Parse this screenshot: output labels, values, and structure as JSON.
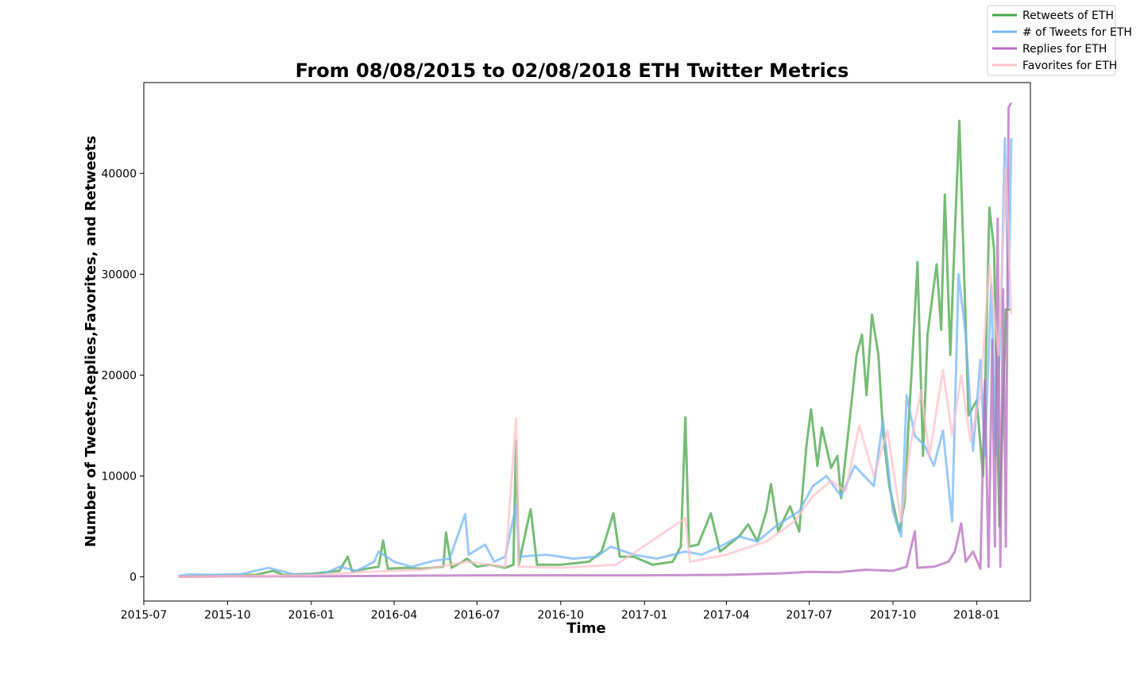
{
  "chart_data": {
    "type": "line",
    "title": "From 08/08/2015 to 02/08/2018 ETH Twitter Metrics",
    "xlabel": "Time",
    "ylabel": "Number of Tweets,Replies,Favorites, and Retweets",
    "x_ticks": [
      "2015-07",
      "2015-10",
      "2016-01",
      "2016-04",
      "2016-07",
      "2016-10",
      "2017-01",
      "2017-04",
      "2017-07",
      "2017-10",
      "2018-01"
    ],
    "y_ticks": [
      "0",
      "10000",
      "20000",
      "30000",
      "40000"
    ],
    "xlim": [
      "2015-07-01",
      "2018-03-01"
    ],
    "ylim": [
      -2400,
      49000
    ],
    "legend_position": "top-right",
    "grid": false,
    "series": [
      {
        "name": "Retweets of ETH",
        "color": "#4aa64a",
        "points": [
          [
            "2015-08-08",
            0
          ],
          [
            "2015-09-01",
            100
          ],
          [
            "2015-10-01",
            150
          ],
          [
            "2015-11-01",
            200
          ],
          [
            "2015-11-20",
            600
          ],
          [
            "2015-12-01",
            200
          ],
          [
            "2016-01-01",
            300
          ],
          [
            "2016-02-01",
            600
          ],
          [
            "2016-02-10",
            2000
          ],
          [
            "2016-02-15",
            500
          ],
          [
            "2016-03-01",
            800
          ],
          [
            "2016-03-15",
            1000
          ],
          [
            "2016-03-20",
            3600
          ],
          [
            "2016-03-25",
            800
          ],
          [
            "2016-04-15",
            900
          ],
          [
            "2016-05-01",
            800
          ],
          [
            "2016-05-25",
            1000
          ],
          [
            "2016-05-28",
            4400
          ],
          [
            "2016-06-03",
            900
          ],
          [
            "2016-06-15",
            1500
          ],
          [
            "2016-06-20",
            1800
          ],
          [
            "2016-07-01",
            1000
          ],
          [
            "2016-07-15",
            1200
          ],
          [
            "2016-08-01",
            900
          ],
          [
            "2016-08-10",
            1200
          ],
          [
            "2016-08-13",
            13500
          ],
          [
            "2016-08-16",
            1200
          ],
          [
            "2016-08-25",
            5100
          ],
          [
            "2016-08-29",
            6700
          ],
          [
            "2016-09-05",
            1200
          ],
          [
            "2016-10-01",
            1200
          ],
          [
            "2016-11-01",
            1500
          ],
          [
            "2016-11-15",
            2500
          ],
          [
            "2016-11-28",
            6300
          ],
          [
            "2016-12-05",
            2000
          ],
          [
            "2016-12-20",
            2000
          ],
          [
            "2017-01-10",
            1200
          ],
          [
            "2017-02-01",
            1500
          ],
          [
            "2017-02-10",
            3000
          ],
          [
            "2017-02-15",
            15800
          ],
          [
            "2017-02-19",
            3000
          ],
          [
            "2017-03-01",
            3200
          ],
          [
            "2017-03-15",
            6300
          ],
          [
            "2017-03-25",
            2500
          ],
          [
            "2017-04-01",
            3000
          ],
          [
            "2017-04-15",
            4000
          ],
          [
            "2017-04-25",
            5200
          ],
          [
            "2017-05-05",
            3500
          ],
          [
            "2017-05-15",
            6500
          ],
          [
            "2017-05-20",
            9200
          ],
          [
            "2017-05-28",
            4500
          ],
          [
            "2017-06-10",
            7000
          ],
          [
            "2017-06-20",
            4500
          ],
          [
            "2017-06-28",
            13000
          ],
          [
            "2017-07-03",
            16600
          ],
          [
            "2017-07-10",
            11000
          ],
          [
            "2017-07-15",
            14800
          ],
          [
            "2017-07-25",
            10800
          ],
          [
            "2017-08-01",
            12000
          ],
          [
            "2017-08-05",
            7800
          ],
          [
            "2017-08-15",
            16000
          ],
          [
            "2017-08-22",
            22000
          ],
          [
            "2017-08-28",
            24000
          ],
          [
            "2017-09-02",
            18000
          ],
          [
            "2017-09-08",
            26000
          ],
          [
            "2017-09-15",
            22000
          ],
          [
            "2017-09-20",
            14500
          ],
          [
            "2017-09-27",
            9000
          ],
          [
            "2017-10-03",
            6500
          ],
          [
            "2017-10-08",
            4500
          ],
          [
            "2017-10-14",
            7500
          ],
          [
            "2017-10-18",
            15000
          ],
          [
            "2017-10-22",
            21000
          ],
          [
            "2017-10-28",
            31200
          ],
          [
            "2017-11-03",
            12000
          ],
          [
            "2017-11-08",
            24000
          ],
          [
            "2017-11-15",
            28900
          ],
          [
            "2017-11-18",
            31000
          ],
          [
            "2017-11-23",
            24500
          ],
          [
            "2017-11-27",
            37900
          ],
          [
            "2017-12-03",
            22000
          ],
          [
            "2017-12-08",
            34000
          ],
          [
            "2017-12-13",
            45200
          ],
          [
            "2017-12-18",
            30500
          ],
          [
            "2017-12-23",
            16000
          ],
          [
            "2018-01-01",
            17500
          ],
          [
            "2018-01-08",
            10000
          ],
          [
            "2018-01-15",
            36600
          ],
          [
            "2018-01-20",
            32500
          ],
          [
            "2018-01-26",
            5000
          ],
          [
            "2018-02-02",
            26500
          ],
          [
            "2018-02-08",
            26500
          ]
        ]
      },
      {
        "name": "# of Tweets for ETH",
        "color": "#7ab8f5",
        "points": [
          [
            "2015-08-08",
            100
          ],
          [
            "2015-08-20",
            250
          ],
          [
            "2015-09-15",
            200
          ],
          [
            "2015-10-15",
            250
          ],
          [
            "2015-11-15",
            900
          ],
          [
            "2015-12-15",
            200
          ],
          [
            "2016-01-15",
            300
          ],
          [
            "2016-02-01",
            1000
          ],
          [
            "2016-02-20",
            600
          ],
          [
            "2016-03-10",
            1500
          ],
          [
            "2016-03-15",
            2500
          ],
          [
            "2016-04-01",
            1500
          ],
          [
            "2016-04-20",
            1000
          ],
          [
            "2016-05-15",
            1600
          ],
          [
            "2016-06-01",
            1800
          ],
          [
            "2016-06-18",
            6200
          ],
          [
            "2016-06-22",
            2200
          ],
          [
            "2016-07-10",
            3200
          ],
          [
            "2016-07-20",
            1500
          ],
          [
            "2016-08-01",
            2000
          ],
          [
            "2016-08-13",
            7100
          ],
          [
            "2016-08-17",
            2000
          ],
          [
            "2016-09-15",
            2200
          ],
          [
            "2016-10-15",
            1800
          ],
          [
            "2016-11-10",
            2000
          ],
          [
            "2016-11-25",
            3000
          ],
          [
            "2016-12-20",
            2200
          ],
          [
            "2017-01-15",
            1800
          ],
          [
            "2017-02-15",
            2500
          ],
          [
            "2017-03-05",
            2200
          ],
          [
            "2017-03-25",
            3000
          ],
          [
            "2017-04-15",
            4000
          ],
          [
            "2017-05-05",
            3500
          ],
          [
            "2017-05-25",
            5000
          ],
          [
            "2017-06-20",
            6500
          ],
          [
            "2017-07-05",
            9000
          ],
          [
            "2017-07-20",
            10000
          ],
          [
            "2017-08-05",
            8000
          ],
          [
            "2017-08-20",
            11000
          ],
          [
            "2017-09-10",
            9000
          ],
          [
            "2017-09-20",
            15500
          ],
          [
            "2017-10-01",
            6500
          ],
          [
            "2017-10-10",
            4000
          ],
          [
            "2017-10-16",
            18000
          ],
          [
            "2017-10-25",
            14000
          ],
          [
            "2017-11-05",
            13000
          ],
          [
            "2017-11-15",
            11000
          ],
          [
            "2017-11-25",
            14500
          ],
          [
            "2017-12-05",
            5500
          ],
          [
            "2017-12-12",
            30000
          ],
          [
            "2017-12-20",
            24000
          ],
          [
            "2017-12-28",
            12500
          ],
          [
            "2018-01-05",
            21500
          ],
          [
            "2018-01-10",
            12000
          ],
          [
            "2018-01-17",
            29000
          ],
          [
            "2018-01-22",
            12000
          ],
          [
            "2018-01-28",
            27000
          ],
          [
            "2018-02-01",
            43500
          ],
          [
            "2018-02-05",
            26800
          ],
          [
            "2018-02-08",
            43500
          ]
        ]
      },
      {
        "name": "Replies for ETH",
        "color": "#b56fbd",
        "points": [
          [
            "2015-08-08",
            0
          ],
          [
            "2015-10-01",
            50
          ],
          [
            "2016-01-01",
            50
          ],
          [
            "2016-04-01",
            100
          ],
          [
            "2016-07-01",
            150
          ],
          [
            "2016-10-01",
            150
          ],
          [
            "2017-01-01",
            150
          ],
          [
            "2017-04-01",
            200
          ],
          [
            "2017-06-01",
            350
          ],
          [
            "2017-07-01",
            500
          ],
          [
            "2017-08-01",
            450
          ],
          [
            "2017-09-01",
            700
          ],
          [
            "2017-10-01",
            600
          ],
          [
            "2017-10-16",
            1000
          ],
          [
            "2017-10-25",
            4500
          ],
          [
            "2017-10-28",
            900
          ],
          [
            "2017-11-15",
            1000
          ],
          [
            "2017-12-01",
            1500
          ],
          [
            "2017-12-08",
            2500
          ],
          [
            "2017-12-15",
            5300
          ],
          [
            "2017-12-20",
            1500
          ],
          [
            "2017-12-28",
            2500
          ],
          [
            "2018-01-05",
            800
          ],
          [
            "2018-01-10",
            19500
          ],
          [
            "2018-01-14",
            1000
          ],
          [
            "2018-01-18",
            23500
          ],
          [
            "2018-01-21",
            3000
          ],
          [
            "2018-01-24",
            35500
          ],
          [
            "2018-01-27",
            1000
          ],
          [
            "2018-01-30",
            28500
          ],
          [
            "2018-02-02",
            3000
          ],
          [
            "2018-02-05",
            46500
          ],
          [
            "2018-02-08",
            47000
          ]
        ]
      },
      {
        "name": "Favorites for ETH",
        "color": "#ffc0cb",
        "points": [
          [
            "2015-08-08",
            0
          ],
          [
            "2015-10-01",
            80
          ],
          [
            "2016-01-01",
            150
          ],
          [
            "2016-03-01",
            500
          ],
          [
            "2016-05-01",
            700
          ],
          [
            "2016-06-20",
            1500
          ],
          [
            "2016-08-01",
            1000
          ],
          [
            "2016-08-13",
            15700
          ],
          [
            "2016-08-16",
            1000
          ],
          [
            "2016-10-01",
            900
          ],
          [
            "2016-12-01",
            1200
          ],
          [
            "2017-02-15",
            5800
          ],
          [
            "2017-02-20",
            1500
          ],
          [
            "2017-04-01",
            2200
          ],
          [
            "2017-05-15",
            3500
          ],
          [
            "2017-06-15",
            5500
          ],
          [
            "2017-07-05",
            8000
          ],
          [
            "2017-07-25",
            9500
          ],
          [
            "2017-08-10",
            8500
          ],
          [
            "2017-08-25",
            15000
          ],
          [
            "2017-09-10",
            10000
          ],
          [
            "2017-09-25",
            14500
          ],
          [
            "2017-10-10",
            5500
          ],
          [
            "2017-10-20",
            13000
          ],
          [
            "2017-11-01",
            18500
          ],
          [
            "2017-11-10",
            12000
          ],
          [
            "2017-11-25",
            20500
          ],
          [
            "2017-12-05",
            14000
          ],
          [
            "2017-12-15",
            20000
          ],
          [
            "2017-12-25",
            13500
          ],
          [
            "2018-01-05",
            18000
          ],
          [
            "2018-01-15",
            31000
          ],
          [
            "2018-01-25",
            22000
          ],
          [
            "2018-02-02",
            40500
          ],
          [
            "2018-02-08",
            26000
          ]
        ]
      }
    ]
  }
}
